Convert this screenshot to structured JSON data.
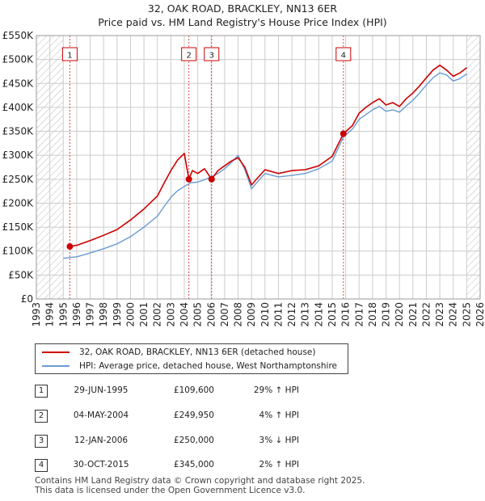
{
  "titles": {
    "line1": "32, OAK ROAD, BRACKLEY, NN13 6ER",
    "line2": "Price paid vs. HM Land Registry's House Price Index (HPI)"
  },
  "colors": {
    "property": "#cc0000",
    "hpi": "#6a9bd1",
    "grid": "#cccccc",
    "hatch": "#bbbbbb",
    "marker_line": "#dd4444"
  },
  "chart_data": {
    "type": "line",
    "title": "Price paid vs. HM Land Registry's House Price Index (HPI)",
    "xlim": [
      1993,
      2026
    ],
    "ylim": [
      0,
      550000
    ],
    "x_ticks": [
      1993,
      1994,
      1995,
      1996,
      1997,
      1998,
      1999,
      2000,
      2001,
      2002,
      2003,
      2004,
      2005,
      2006,
      2007,
      2008,
      2009,
      2010,
      2011,
      2012,
      2013,
      2014,
      2015,
      2016,
      2017,
      2018,
      2019,
      2020,
      2021,
      2022,
      2023,
      2024,
      2025,
      2026
    ],
    "x_tick_labels": [
      "1993",
      "1994",
      "1995",
      "1996",
      "1997",
      "1998",
      "1999",
      "2000",
      "2001",
      "2002",
      "2003",
      "2004",
      "2005",
      "2006",
      "2007",
      "2008",
      "2009",
      "2010",
      "2011",
      "2012",
      "2013",
      "2014",
      "2015",
      "2016",
      "2017",
      "2018",
      "2019",
      "2020",
      "2021",
      "2022",
      "2023",
      "2024",
      "2025",
      "2026"
    ],
    "y_ticks": [
      0,
      50000,
      100000,
      150000,
      200000,
      250000,
      300000,
      350000,
      400000,
      450000,
      500000,
      550000
    ],
    "y_tick_labels": [
      "£0",
      "£50K",
      "£100K",
      "£150K",
      "£200K",
      "£250K",
      "£300K",
      "£350K",
      "£400K",
      "£450K",
      "£500K",
      "£550K"
    ],
    "hatched_ranges": [
      [
        1993,
        1995.0
      ],
      [
        2025.0,
        2026
      ]
    ],
    "series": [
      {
        "name": "32, OAK ROAD, BRACKLEY, NN13 6ER (detached house)",
        "x": [
          1995.5,
          1996,
          1997,
          1998,
          1999,
          2000,
          2001,
          2002,
          2002.5,
          2003,
          2003.5,
          2004.0,
          2004.34,
          2004.6,
          2005,
          2005.5,
          2006.03,
          2006.5,
          2007,
          2007.5,
          2008,
          2008.5,
          2009.0,
          2009.3,
          2010,
          2011,
          2012,
          2013,
          2014,
          2015,
          2015.83,
          2016.5,
          2017,
          2017.5,
          2018,
          2018.5,
          2019,
          2019.5,
          2020,
          2020.5,
          2021,
          2021.5,
          2022,
          2022.5,
          2023.0,
          2023.5,
          2024,
          2024.5,
          2025.0
        ],
        "values": [
          109600,
          112000,
          122000,
          133000,
          145000,
          165000,
          188000,
          215000,
          242000,
          268000,
          290000,
          304000,
          249950,
          268000,
          262000,
          272000,
          250000,
          268000,
          278000,
          288000,
          295000,
          275000,
          238000,
          248000,
          270000,
          262000,
          268000,
          270000,
          278000,
          298000,
          345000,
          362000,
          388000,
          400000,
          410000,
          418000,
          405000,
          410000,
          402000,
          418000,
          430000,
          445000,
          462000,
          478000,
          488000,
          478000,
          465000,
          472000,
          483000
        ]
      },
      {
        "name": "HPI: Average price, detached house, West Northamptonshire",
        "x": [
          1995.0,
          1996,
          1997,
          1998,
          1999,
          2000,
          2001,
          2002,
          2002.5,
          2003,
          2003.5,
          2004.0,
          2004.5,
          2005,
          2005.5,
          2006,
          2006.5,
          2007,
          2007.5,
          2008,
          2008.5,
          2009.0,
          2009.3,
          2010,
          2011,
          2012,
          2013,
          2014,
          2015,
          2015.83,
          2016.5,
          2017,
          2017.5,
          2018,
          2018.5,
          2019,
          2019.5,
          2020,
          2020.5,
          2021,
          2021.5,
          2022,
          2022.5,
          2023.0,
          2023.5,
          2024,
          2024.5,
          2025.0
        ],
        "values": [
          85000,
          88000,
          96000,
          105000,
          115000,
          130000,
          150000,
          173000,
          193000,
          212000,
          226000,
          235000,
          243000,
          244000,
          249000,
          255000,
          262000,
          272000,
          285000,
          300000,
          270000,
          230000,
          240000,
          262000,
          255000,
          258000,
          262000,
          272000,
          288000,
          338000,
          355000,
          375000,
          385000,
          395000,
          402000,
          392000,
          395000,
          390000,
          403000,
          415000,
          430000,
          447000,
          462000,
          472000,
          468000,
          455000,
          460000,
          470000
        ]
      }
    ],
    "sale_markers": [
      {
        "label": "1",
        "x": 1995.49,
        "value": 109600
      },
      {
        "label": "2",
        "x": 2004.34,
        "value": 249950
      },
      {
        "label": "3",
        "x": 2006.03,
        "value": 250000
      },
      {
        "label": "4",
        "x": 2015.83,
        "value": 345000
      }
    ]
  },
  "legend": {
    "property_label": "32, OAK ROAD, BRACKLEY, NN13 6ER (detached house)",
    "hpi_label": "HPI: Average price, detached house, West Northamptonshire"
  },
  "transactions": [
    {
      "num": "1",
      "date": "29-JUN-1995",
      "price": "£109,600",
      "hpi": "29% ↑ HPI"
    },
    {
      "num": "2",
      "date": "04-MAY-2004",
      "price": "£249,950",
      "hpi": "4% ↑ HPI"
    },
    {
      "num": "3",
      "date": "12-JAN-2006",
      "price": "£250,000",
      "hpi": "3% ↓ HPI"
    },
    {
      "num": "4",
      "date": "30-OCT-2015",
      "price": "£345,000",
      "hpi": "2% ↑ HPI"
    }
  ],
  "footer": {
    "line1": "Contains HM Land Registry data © Crown copyright and database right 2025.",
    "line2": "This data is licensed under the Open Government Licence v3.0."
  }
}
